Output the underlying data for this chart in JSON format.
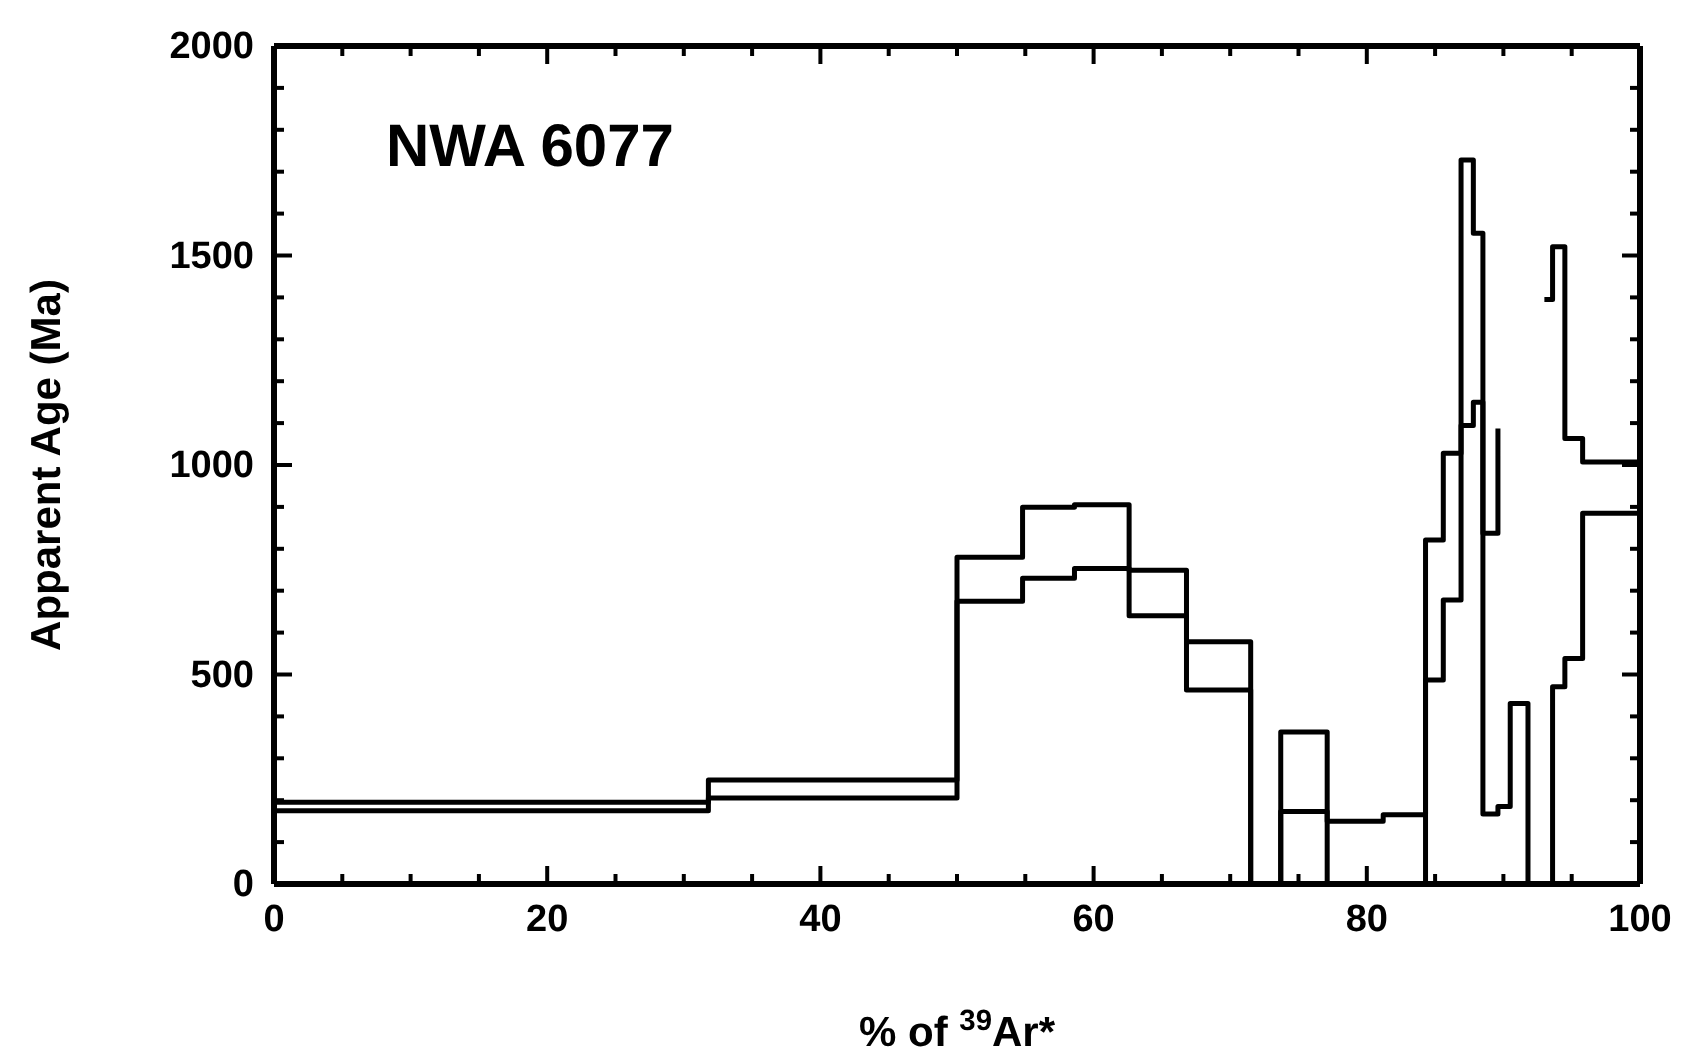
{
  "chart_data": {
    "type": "step",
    "title": "NWA 6077",
    "xlabel": "% of $^{39}$Ar*",
    "ylabel": "Apparent Age (Ma)",
    "xlim": [
      0,
      100
    ],
    "ylim": [
      0,
      2000
    ],
    "xticks": [
      0,
      {
        "value": 5,
        "label": null
      },
      {
        "value": 10,
        "label": null
      },
      {
        "value": 15,
        "label": null
      },
      20,
      {
        "value": 25,
        "label": null
      },
      {
        "value": 30,
        "label": null
      },
      {
        "value": 35,
        "label": null
      },
      40,
      {
        "value": 45,
        "label": null
      },
      {
        "value": 50,
        "label": null
      },
      {
        "value": 55,
        "label": null
      },
      60,
      {
        "value": 65,
        "label": null
      },
      {
        "value": 70,
        "label": null
      },
      {
        "value": 75,
        "label": null
      },
      80,
      {
        "value": 85,
        "label": null
      },
      {
        "value": 90,
        "label": null
      },
      {
        "value": 95,
        "label": null
      },
      100
    ],
    "yticks": [
      0,
      {
        "value": 100,
        "label": null
      },
      {
        "value": 200,
        "label": null
      },
      {
        "value": 300,
        "label": null
      },
      {
        "value": 400,
        "label": null
      },
      500,
      {
        "value": 600,
        "label": null
      },
      {
        "value": 700,
        "label": null
      },
      {
        "value": 800,
        "label": null
      },
      {
        "value": 900,
        "label": null
      },
      1000,
      {
        "value": 1100,
        "label": null
      },
      {
        "value": 1200,
        "label": null
      },
      {
        "value": 1300,
        "label": null
      },
      {
        "value": 1400,
        "label": null
      },
      1500,
      {
        "value": 1600,
        "label": null
      },
      {
        "value": 1700,
        "label": null
      },
      {
        "value": 1800,
        "label": null
      },
      {
        "value": 1900,
        "label": null
      },
      2000
    ],
    "series": [
      {
        "color": "#000000",
        "x": [
          0,
          31.8,
          50,
          54.8,
          58.6,
          62.6,
          66.8,
          71.5,
          73.7,
          77.1,
          81.2,
          84.3,
          85.6,
          86.9,
          87.8,
          88.5,
          89.6,
          90.5,
          91.8,
          93.0,
          93.6,
          94.5,
          95.8,
          100
        ],
        "values": [
          195,
          248,
          780,
          899,
          905,
          749,
          578,
          0,
          363,
          150,
          165,
          821,
          1028,
          1728,
          1553,
          837,
          1087,
          null,
          null,
          1395,
          1521,
          1063,
          1007,
          1007
        ]
      },
      {
        "color": "#000000",
        "x": [
          0,
          31.8,
          50,
          54.8,
          58.6,
          62.6,
          66.8,
          71.5,
          73.7,
          77.1,
          81.2,
          84.3,
          85.6,
          86.9,
          87.8,
          88.5,
          89.6,
          90.5,
          91.8,
          93.0,
          93.6,
          94.5,
          95.8,
          100
        ],
        "values": [
          175,
          205,
          675,
          730,
          753,
          640,
          463,
          0,
          173,
          0,
          0,
          487,
          678,
          1094,
          1150,
          167,
          185,
          431,
          0,
          0,
          471,
          538,
          885,
          885
        ]
      }
    ]
  }
}
